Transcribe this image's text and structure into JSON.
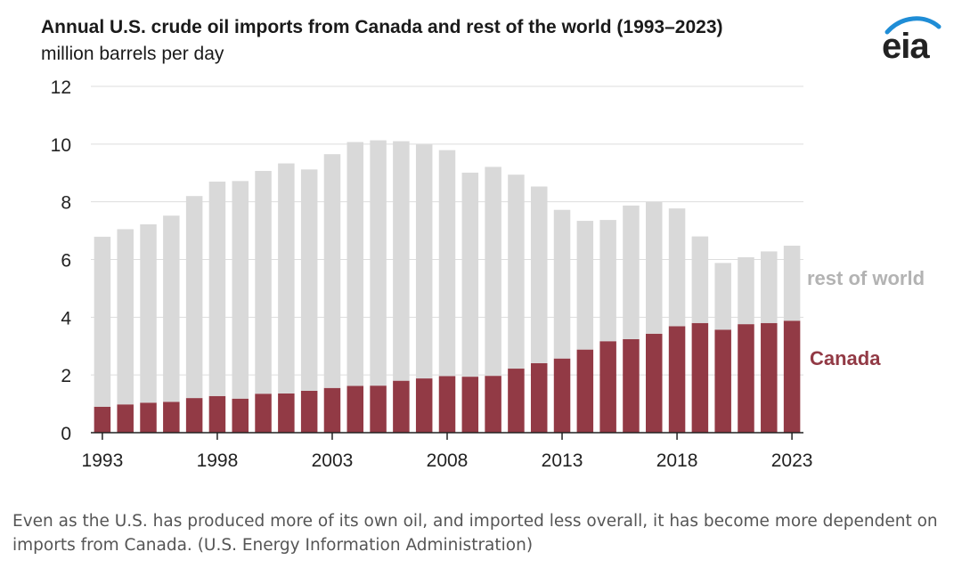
{
  "colors": {
    "canada": "#923a45",
    "rest_of_world": "#d9d9d9",
    "rest_label": "#b3b3b3",
    "grid": "#dddddd",
    "axis": "#222222"
  },
  "logo": {
    "text": "eia",
    "swoosh_color": "#1f8dd6"
  },
  "caption": "Even as the U.S. has produced more of its own oil, and imported less overall, it has become more dependent on imports from Canada. (U.S. Energy Information Administration)",
  "chart_data": {
    "type": "bar",
    "stacked": true,
    "title": "Annual U.S. crude oil imports from Canada and rest of the world (1993–2023)",
    "subtitle": "million barrels per day",
    "ylim": [
      0,
      12
    ],
    "yticks": [
      0,
      2,
      4,
      6,
      8,
      10,
      12
    ],
    "xtick_labels": [
      "1993",
      "1998",
      "2003",
      "2008",
      "2013",
      "2018",
      "2023"
    ],
    "grid": true,
    "categories": [
      1993,
      1994,
      1995,
      1996,
      1997,
      1998,
      1999,
      2000,
      2001,
      2002,
      2003,
      2004,
      2005,
      2006,
      2007,
      2008,
      2009,
      2010,
      2011,
      2012,
      2013,
      2014,
      2015,
      2016,
      2017,
      2018,
      2019,
      2020,
      2021,
      2022,
      2023
    ],
    "series": [
      {
        "name": "Canada",
        "color": "#923a45",
        "values": [
          0.9,
          0.98,
          1.04,
          1.07,
          1.2,
          1.27,
          1.18,
          1.35,
          1.36,
          1.45,
          1.55,
          1.62,
          1.63,
          1.8,
          1.88,
          1.96,
          1.94,
          1.97,
          2.22,
          2.41,
          2.57,
          2.88,
          3.17,
          3.24,
          3.43,
          3.69,
          3.8,
          3.57,
          3.76,
          3.8,
          3.88
        ]
      },
      {
        "name": "rest of world",
        "color": "#d9d9d9",
        "values": [
          5.89,
          6.07,
          6.18,
          6.45,
          7.0,
          7.43,
          7.54,
          7.72,
          7.97,
          7.67,
          8.1,
          8.45,
          8.5,
          8.3,
          8.11,
          7.83,
          7.07,
          7.24,
          6.72,
          6.12,
          5.15,
          4.46,
          4.2,
          4.63,
          4.56,
          4.08,
          3.0,
          2.31,
          2.32,
          2.48,
          2.6
        ]
      }
    ]
  }
}
